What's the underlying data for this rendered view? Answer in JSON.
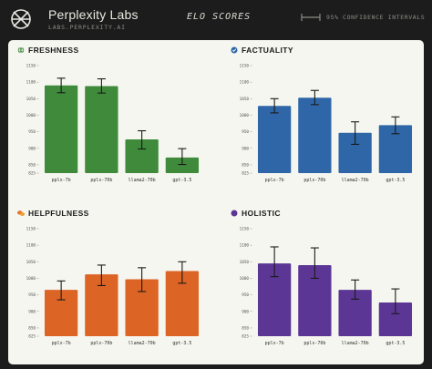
{
  "header": {
    "brand": "Perplexity Labs",
    "url": "LABS.PERPLEXITY.AI",
    "title": "ELO SCORES",
    "legend": "95% CONFIDENCE INTERVALS"
  },
  "chart_data": [
    {
      "type": "bar",
      "title": "FRESHNESS",
      "icon": "globe-icon",
      "color": "#3f8a3b",
      "categories": [
        "pplx-7b",
        "pplx-70b",
        "llama2-70b",
        "gpt-3.5"
      ],
      "values": [
        1090,
        1088,
        927,
        872
      ],
      "error_low": [
        1068,
        1067,
        898,
        851
      ],
      "error_high": [
        1112,
        1110,
        953,
        899
      ],
      "ylim": [
        825,
        1150
      ],
      "yticks": [
        "825",
        "850",
        "900",
        "950",
        "1000",
        "1050",
        "1100",
        "1150"
      ],
      "ytick_values": [
        825,
        850,
        900,
        950,
        1000,
        1050,
        1100,
        1150
      ]
    },
    {
      "type": "bar",
      "title": "FACTUALITY",
      "icon": "check-circle-icon",
      "color": "#2f66a8",
      "categories": [
        "pplx-7b",
        "pplx-70b",
        "llama2-70b",
        "gpt-3.5"
      ],
      "values": [
        1028,
        1053,
        947,
        970
      ],
      "error_low": [
        1007,
        1032,
        912,
        944
      ],
      "error_high": [
        1050,
        1075,
        980,
        995
      ],
      "ylim": [
        825,
        1150
      ],
      "yticks": [
        "825",
        "850",
        "900",
        "950",
        "1000",
        "1050",
        "1100",
        "1150"
      ],
      "ytick_values": [
        825,
        850,
        900,
        950,
        1000,
        1050,
        1100,
        1150
      ]
    },
    {
      "type": "bar",
      "title": "HELPFULNESS",
      "icon": "chat-bubbles-icon",
      "color": "#dc6425",
      "categories": [
        "pplx-7b",
        "pplx-70b",
        "llama2-70b",
        "gpt-3.5"
      ],
      "values": [
        965,
        1012,
        997,
        1022
      ],
      "error_low": [
        935,
        978,
        960,
        985
      ],
      "error_high": [
        992,
        1040,
        1032,
        1050
      ],
      "ylim": [
        825,
        1150
      ],
      "yticks": [
        "825",
        "850",
        "900",
        "950",
        "1000",
        "1050",
        "1100",
        "1150"
      ],
      "ytick_values": [
        825,
        850,
        900,
        950,
        1000,
        1050,
        1100,
        1150
      ]
    },
    {
      "type": "bar",
      "title": "HOLISTIC",
      "icon": "circle-icon",
      "color": "#5b3695",
      "categories": [
        "pplx-7b",
        "pplx-70b",
        "llama2-70b",
        "gpt-3.5"
      ],
      "values": [
        1045,
        1040,
        965,
        927
      ],
      "error_low": [
        1005,
        1000,
        937,
        893
      ],
      "error_high": [
        1095,
        1092,
        995,
        968
      ],
      "ylim": [
        825,
        1150
      ],
      "yticks": [
        "825",
        "850",
        "900",
        "950",
        "1000",
        "1050",
        "1100",
        "1150"
      ],
      "ytick_values": [
        825,
        850,
        900,
        950,
        1000,
        1050,
        1100,
        1150
      ]
    }
  ]
}
